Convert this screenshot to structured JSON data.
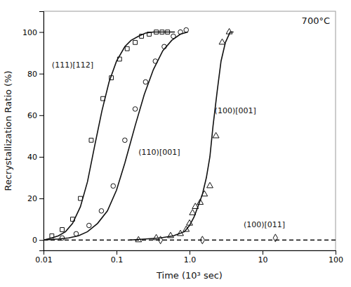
{
  "chart_data": {
    "type": "line",
    "title": "700°C",
    "x_label": "Time (10³ sec)",
    "y_label": "Recrystallization Ratio (%)",
    "log": "x",
    "grid": false,
    "xlim": [
      0.01,
      100
    ],
    "xticks": [
      0.01,
      0.1,
      {
        "value": 1.0,
        "label": "1.0"
      },
      10,
      100
    ],
    "ylim": [
      -5,
      110
    ],
    "yticks": [
      0,
      20,
      40,
      60,
      80,
      100
    ],
    "series": [
      {
        "type": "line",
        "color": "#111111",
        "line_style": "solid",
        "x": [
          0.01,
          0.013,
          0.016,
          0.02,
          0.025,
          0.032,
          0.04,
          0.05,
          0.063,
          0.079,
          0.1,
          0.13,
          0.158,
          0.2,
          0.25,
          0.32,
          0.4,
          0.5,
          0.63
        ],
        "values": [
          0,
          1,
          2,
          4,
          8,
          16,
          28,
          45,
          62,
          76,
          86,
          93,
          96,
          98,
          99.5,
          100,
          100,
          100,
          100
        ]
      },
      {
        "type": "scatter",
        "color": "#111111",
        "marker": "square",
        "x": [
          0.013,
          0.018,
          0.025,
          0.032,
          0.045,
          0.065,
          0.085,
          0.11,
          0.14,
          0.18,
          0.22,
          0.28,
          0.35,
          0.42,
          0.5
        ],
        "values": [
          2,
          5,
          10,
          20,
          48,
          68,
          78,
          87,
          92,
          95,
          98,
          99,
          100,
          100,
          100
        ]
      },
      {
        "type": "line",
        "color": "#111111",
        "line_style": "solid",
        "x": [
          0.01,
          0.016,
          0.022,
          0.03,
          0.04,
          0.055,
          0.075,
          0.1,
          0.13,
          0.18,
          0.24,
          0.32,
          0.43,
          0.57,
          0.75,
          0.95
        ],
        "values": [
          0,
          0.5,
          1,
          2,
          4,
          8,
          14,
          24,
          37,
          55,
          70,
          82,
          91,
          96,
          99,
          100
        ]
      },
      {
        "type": "scatter",
        "color": "#111111",
        "marker": "circle",
        "x": [
          0.018,
          0.028,
          0.042,
          0.062,
          0.09,
          0.13,
          0.18,
          0.25,
          0.34,
          0.45,
          0.6,
          0.75,
          0.9
        ],
        "values": [
          1,
          3,
          7,
          14,
          26,
          48,
          63,
          76,
          86,
          93,
          98,
          100,
          101
        ]
      },
      {
        "type": "line",
        "color": "#111111",
        "line_style": "solid",
        "x": [
          0.15,
          0.25,
          0.4,
          0.6,
          0.85,
          1.0,
          1.15,
          1.3,
          1.5,
          1.7,
          1.9,
          2.1,
          2.4,
          2.7,
          3.1,
          3.6,
          4.0
        ],
        "values": [
          0,
          0.5,
          1,
          2,
          4,
          7,
          11,
          16,
          22,
          30,
          40,
          55,
          72,
          86,
          95,
          100,
          100
        ]
      },
      {
        "type": "scatter",
        "color": "#111111",
        "marker": "triangle",
        "x": [
          0.2,
          0.35,
          0.55,
          0.75,
          0.9,
          1.0,
          1.1,
          1.2,
          1.4,
          1.6,
          1.9,
          2.3,
          2.8,
          3.5
        ],
        "values": [
          0,
          1,
          2,
          3,
          5,
          8,
          13,
          16,
          18,
          22,
          26,
          50,
          95,
          100
        ]
      },
      {
        "type": "line",
        "color": "#111111",
        "line_style": "dashed",
        "x": [
          0.01,
          100
        ],
        "values": [
          0,
          0
        ]
      },
      {
        "type": "scatter",
        "color": "#111111",
        "marker": "diamond",
        "x": [
          0.4,
          1.5,
          15.0
        ],
        "values": [
          0,
          0,
          1
        ]
      }
    ],
    "annotations": [
      {
        "text": "(111)[112]",
        "x": 0.013,
        "y": 83
      },
      {
        "text": "(110)[001]",
        "x": 0.2,
        "y": 41
      },
      {
        "text": "(100)[001]",
        "x": 2.2,
        "y": 61
      },
      {
        "text": "(100)[011]",
        "x": 5.5,
        "y": 6
      }
    ]
  }
}
